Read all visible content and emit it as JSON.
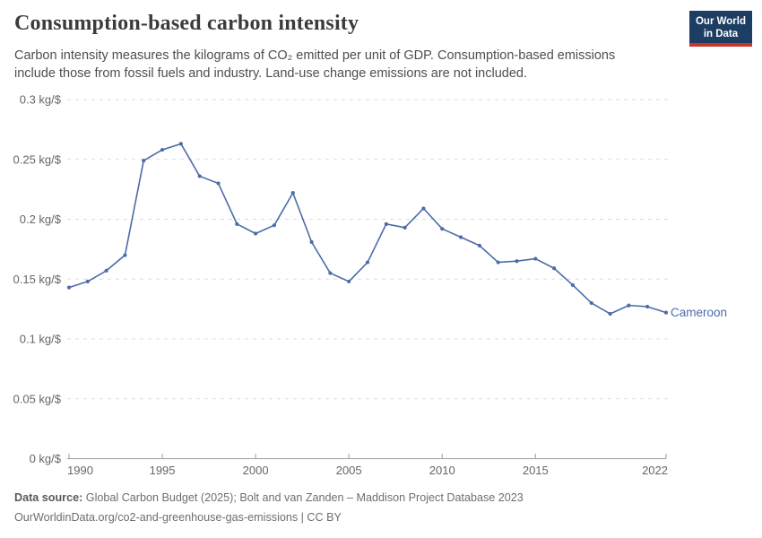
{
  "header": {
    "title": "Consumption-based carbon intensity",
    "subtitle": "Carbon intensity measures the kilograms of CO₂ emitted per unit of GDP. Consumption-based emissions include those from fossil fuels and industry. Land-use change emissions are not included.",
    "logo": {
      "line1": "Our World",
      "line2": "in Data"
    }
  },
  "chart_data": {
    "type": "line",
    "title": "Consumption-based carbon intensity",
    "ylabel_unit": "kg/$",
    "xlim": [
      1990,
      2022
    ],
    "ylim": [
      0,
      0.3
    ],
    "grid": "horizontal-dashed",
    "legend_position": "end-of-line-label",
    "x_ticks": [
      1990,
      1995,
      2000,
      2005,
      2010,
      2015,
      2022
    ],
    "y_ticks": [
      0,
      0.05,
      0.1,
      0.15,
      0.2,
      0.25,
      0.3
    ],
    "y_tick_labels": [
      "0 kg/$",
      "0.05 kg/$",
      "0.1 kg/$",
      "0.15 kg/$",
      "0.2 kg/$",
      "0.25 kg/$",
      "0.3 kg/$"
    ],
    "series": [
      {
        "name": "Cameroon",
        "color": "#4C6BA9",
        "x": [
          1990,
          1991,
          1992,
          1993,
          1994,
          1995,
          1996,
          1997,
          1998,
          1999,
          2000,
          2001,
          2002,
          2003,
          2004,
          2005,
          2006,
          2007,
          2008,
          2009,
          2010,
          2011,
          2012,
          2013,
          2014,
          2015,
          2016,
          2017,
          2018,
          2019,
          2020,
          2021,
          2022
        ],
        "values": [
          0.143,
          0.148,
          0.157,
          0.17,
          0.249,
          0.258,
          0.263,
          0.236,
          0.23,
          0.196,
          0.188,
          0.195,
          0.222,
          0.181,
          0.155,
          0.148,
          0.164,
          0.196,
          0.193,
          0.209,
          0.192,
          0.185,
          0.178,
          0.164,
          0.165,
          0.167,
          0.159,
          0.145,
          0.13,
          0.121,
          0.128,
          0.127,
          0.122
        ]
      }
    ]
  },
  "footer": {
    "source_label": "Data source:",
    "source_text": " Global Carbon Budget (2025); Bolt and van Zanden – Maddison Project Database 2023",
    "note_text": "OurWorldinData.org/co2-and-greenhouse-gas-emissions | CC BY"
  },
  "colors": {
    "series_blue": "#4C6BA9",
    "gridline": "#dcdcdc",
    "axis_line": "#9e9e9e",
    "tick_text": "#666666",
    "logo_navy": "#1d3d63",
    "logo_red": "#c7352b"
  }
}
